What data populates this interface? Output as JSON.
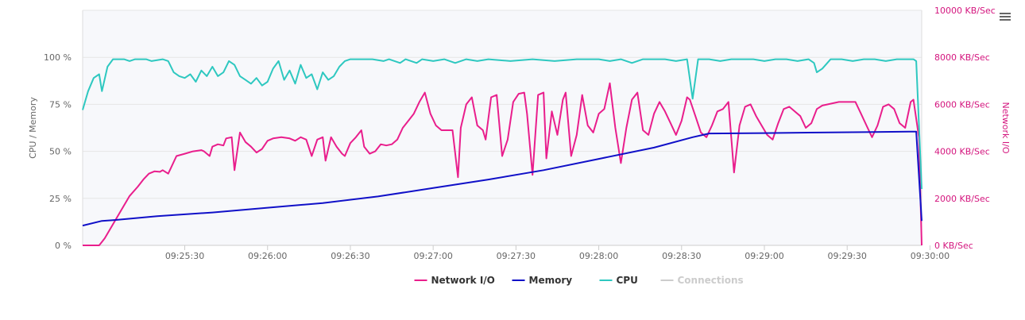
{
  "chart_data": {
    "type": "line",
    "x_labels": [
      "09:25:30",
      "09:26:00",
      "09:26:30",
      "09:27:00",
      "09:27:30",
      "09:28:00",
      "09:28:30",
      "09:29:00",
      "09:29:30",
      "09:30:00"
    ],
    "y_left": {
      "title": "CPU / Memory",
      "ticks": [
        "0 %",
        "25 %",
        "50 %",
        "75 %",
        "100 %"
      ],
      "range": [
        0,
        125
      ]
    },
    "y_right": {
      "title": "Network I/O",
      "ticks": [
        "0 KB/Sec",
        "2000 KB/Sec",
        "4000 KB/Sec",
        "6000 KB/Sec",
        "8000 KB/Sec",
        "10000 KB/Sec"
      ],
      "range": [
        0,
        10000
      ]
    },
    "grid": true,
    "legend_position": "bottom-center",
    "x_unit": "seconds since 09:25:00",
    "x_range": [
      -7,
      297
    ],
    "series": [
      {
        "name": "Network I/O",
        "axis": "right",
        "color": "#e91e8c",
        "points": [
          [
            -7,
            0
          ],
          [
            -1,
            0
          ],
          [
            1,
            300
          ],
          [
            4,
            900
          ],
          [
            7,
            1500
          ],
          [
            10,
            2100
          ],
          [
            13,
            2500
          ],
          [
            15,
            2800
          ],
          [
            17,
            3050
          ],
          [
            19,
            3150
          ],
          [
            21,
            3130
          ],
          [
            22,
            3200
          ],
          [
            24,
            3050
          ],
          [
            25,
            3300
          ],
          [
            27,
            3800
          ],
          [
            30,
            3900
          ],
          [
            33,
            4000
          ],
          [
            36,
            4050
          ],
          [
            37,
            4000
          ],
          [
            39,
            3800
          ],
          [
            40,
            4200
          ],
          [
            42,
            4300
          ],
          [
            44,
            4250
          ],
          [
            45,
            4550
          ],
          [
            47,
            4600
          ],
          [
            48,
            3200
          ],
          [
            50,
            4800
          ],
          [
            52,
            4400
          ],
          [
            54,
            4200
          ],
          [
            56,
            3950
          ],
          [
            58,
            4100
          ],
          [
            60,
            4450
          ],
          [
            62,
            4550
          ],
          [
            65,
            4600
          ],
          [
            68,
            4550
          ],
          [
            70,
            4450
          ],
          [
            72,
            4600
          ],
          [
            74,
            4500
          ],
          [
            76,
            3800
          ],
          [
            78,
            4500
          ],
          [
            80,
            4600
          ],
          [
            81,
            3600
          ],
          [
            83,
            4600
          ],
          [
            85,
            4200
          ],
          [
            87,
            3900
          ],
          [
            88,
            3800
          ],
          [
            90,
            4350
          ],
          [
            92,
            4600
          ],
          [
            94,
            4900
          ],
          [
            95,
            4200
          ],
          [
            97,
            3900
          ],
          [
            99,
            4000
          ],
          [
            101,
            4300
          ],
          [
            103,
            4250
          ],
          [
            105,
            4300
          ],
          [
            107,
            4500
          ],
          [
            109,
            5000
          ],
          [
            111,
            5300
          ],
          [
            113,
            5600
          ],
          [
            115,
            6100
          ],
          [
            117,
            6500
          ],
          [
            119,
            5600
          ],
          [
            121,
            5100
          ],
          [
            123,
            4900
          ],
          [
            125,
            4900
          ],
          [
            127,
            4900
          ],
          [
            129,
            2900
          ],
          [
            130,
            5000
          ],
          [
            132,
            6000
          ],
          [
            134,
            6300
          ],
          [
            136,
            5100
          ],
          [
            138,
            4900
          ],
          [
            139,
            4500
          ],
          [
            141,
            6300
          ],
          [
            143,
            6400
          ],
          [
            145,
            3800
          ],
          [
            147,
            4500
          ],
          [
            149,
            6100
          ],
          [
            151,
            6450
          ],
          [
            153,
            6500
          ],
          [
            154,
            5600
          ],
          [
            156,
            3000
          ],
          [
            158,
            6400
          ],
          [
            160,
            6500
          ],
          [
            161,
            3700
          ],
          [
            163,
            5700
          ],
          [
            165,
            4700
          ],
          [
            167,
            6200
          ],
          [
            168,
            6500
          ],
          [
            170,
            3800
          ],
          [
            172,
            4700
          ],
          [
            174,
            6400
          ],
          [
            176,
            5100
          ],
          [
            178,
            4800
          ],
          [
            180,
            5600
          ],
          [
            182,
            5800
          ],
          [
            184,
            6900
          ],
          [
            186,
            5000
          ],
          [
            188,
            3500
          ],
          [
            190,
            5000
          ],
          [
            192,
            6200
          ],
          [
            194,
            6500
          ],
          [
            196,
            4900
          ],
          [
            198,
            4700
          ],
          [
            200,
            5600
          ],
          [
            202,
            6100
          ],
          [
            204,
            5700
          ],
          [
            206,
            5200
          ],
          [
            208,
            4700
          ],
          [
            210,
            5300
          ],
          [
            212,
            6300
          ],
          [
            213,
            6200
          ],
          [
            215,
            5500
          ],
          [
            217,
            4800
          ],
          [
            219,
            4600
          ],
          [
            221,
            5100
          ],
          [
            223,
            5700
          ],
          [
            225,
            5800
          ],
          [
            227,
            6100
          ],
          [
            229,
            3100
          ],
          [
            231,
            5100
          ],
          [
            233,
            5900
          ],
          [
            235,
            6000
          ],
          [
            237,
            5500
          ],
          [
            239,
            5100
          ],
          [
            241,
            4700
          ],
          [
            243,
            4500
          ],
          [
            245,
            5200
          ],
          [
            247,
            5800
          ],
          [
            249,
            5900
          ],
          [
            251,
            5700
          ],
          [
            253,
            5500
          ],
          [
            255,
            5000
          ],
          [
            257,
            5200
          ],
          [
            259,
            5800
          ],
          [
            261,
            5950
          ],
          [
            263,
            6000
          ],
          [
            265,
            6050
          ],
          [
            267,
            6100
          ],
          [
            269,
            6100
          ],
          [
            271,
            6100
          ],
          [
            273,
            6100
          ],
          [
            275,
            5600
          ],
          [
            277,
            5100
          ],
          [
            279,
            4600
          ],
          [
            281,
            5100
          ],
          [
            283,
            5900
          ],
          [
            285,
            6000
          ],
          [
            287,
            5800
          ],
          [
            289,
            5200
          ],
          [
            291,
            5000
          ],
          [
            293,
            6100
          ],
          [
            294,
            6200
          ],
          [
            296,
            4600
          ],
          [
            297,
            0
          ]
        ]
      },
      {
        "name": "Memory",
        "axis": "left",
        "color": "#1010c8",
        "points": [
          [
            -7,
            10.5
          ],
          [
            0,
            13
          ],
          [
            5,
            13.5
          ],
          [
            20,
            15.5
          ],
          [
            40,
            17.5
          ],
          [
            60,
            20
          ],
          [
            80,
            22.5
          ],
          [
            100,
            26
          ],
          [
            120,
            30.5
          ],
          [
            140,
            35
          ],
          [
            160,
            40
          ],
          [
            180,
            46
          ],
          [
            200,
            52
          ],
          [
            214,
            57.5
          ],
          [
            220,
            59.5
          ],
          [
            240,
            59.7
          ],
          [
            260,
            60
          ],
          [
            280,
            60.3
          ],
          [
            295,
            60.5
          ],
          [
            297,
            13
          ]
        ]
      },
      {
        "name": "CPU",
        "axis": "left",
        "color": "#2ec8c0",
        "points": [
          [
            -7,
            72
          ],
          [
            -5,
            82
          ],
          [
            -3,
            89
          ],
          [
            -1,
            91
          ],
          [
            0,
            82
          ],
          [
            2,
            95
          ],
          [
            4,
            99
          ],
          [
            8,
            99
          ],
          [
            10,
            98
          ],
          [
            12,
            99
          ],
          [
            16,
            99
          ],
          [
            18,
            98
          ],
          [
            22,
            99
          ],
          [
            24,
            98
          ],
          [
            26,
            92
          ],
          [
            28,
            90
          ],
          [
            30,
            89
          ],
          [
            32,
            91
          ],
          [
            34,
            87
          ],
          [
            36,
            93
          ],
          [
            38,
            90
          ],
          [
            40,
            95
          ],
          [
            42,
            90
          ],
          [
            44,
            92
          ],
          [
            46,
            98
          ],
          [
            48,
            96
          ],
          [
            50,
            90
          ],
          [
            52,
            88
          ],
          [
            54,
            86
          ],
          [
            56,
            89
          ],
          [
            58,
            85
          ],
          [
            60,
            87
          ],
          [
            62,
            94
          ],
          [
            64,
            98
          ],
          [
            66,
            88
          ],
          [
            68,
            93
          ],
          [
            70,
            86
          ],
          [
            72,
            96
          ],
          [
            74,
            89
          ],
          [
            76,
            91
          ],
          [
            78,
            83
          ],
          [
            80,
            92
          ],
          [
            82,
            88
          ],
          [
            84,
            90
          ],
          [
            86,
            95
          ],
          [
            88,
            98
          ],
          [
            90,
            99
          ],
          [
            94,
            99
          ],
          [
            98,
            99
          ],
          [
            102,
            98
          ],
          [
            104,
            99
          ],
          [
            108,
            97
          ],
          [
            110,
            99
          ],
          [
            114,
            97
          ],
          [
            116,
            99
          ],
          [
            120,
            98
          ],
          [
            124,
            99
          ],
          [
            128,
            97
          ],
          [
            132,
            99
          ],
          [
            136,
            98
          ],
          [
            140,
            99
          ],
          [
            148,
            98
          ],
          [
            156,
            99
          ],
          [
            164,
            98
          ],
          [
            172,
            99
          ],
          [
            180,
            99
          ],
          [
            184,
            98
          ],
          [
            188,
            99
          ],
          [
            192,
            97
          ],
          [
            196,
            99
          ],
          [
            200,
            99
          ],
          [
            204,
            99
          ],
          [
            208,
            98
          ],
          [
            212,
            99
          ],
          [
            214,
            78
          ],
          [
            216,
            99
          ],
          [
            220,
            99
          ],
          [
            224,
            98
          ],
          [
            228,
            99
          ],
          [
            232,
            99
          ],
          [
            236,
            99
          ],
          [
            240,
            98
          ],
          [
            244,
            99
          ],
          [
            248,
            99
          ],
          [
            252,
            98
          ],
          [
            256,
            99
          ],
          [
            258,
            97
          ],
          [
            259,
            92
          ],
          [
            261,
            94
          ],
          [
            264,
            99
          ],
          [
            268,
            99
          ],
          [
            272,
            98
          ],
          [
            276,
            99
          ],
          [
            280,
            99
          ],
          [
            284,
            98
          ],
          [
            288,
            99
          ],
          [
            292,
            99
          ],
          [
            294,
            99
          ],
          [
            295,
            98
          ],
          [
            297,
            30
          ]
        ]
      },
      {
        "name": "Connections",
        "axis": "left",
        "color": "#cccccc",
        "hidden": true,
        "points": []
      }
    ]
  },
  "menu": {
    "icon": "hamburger-icon"
  }
}
